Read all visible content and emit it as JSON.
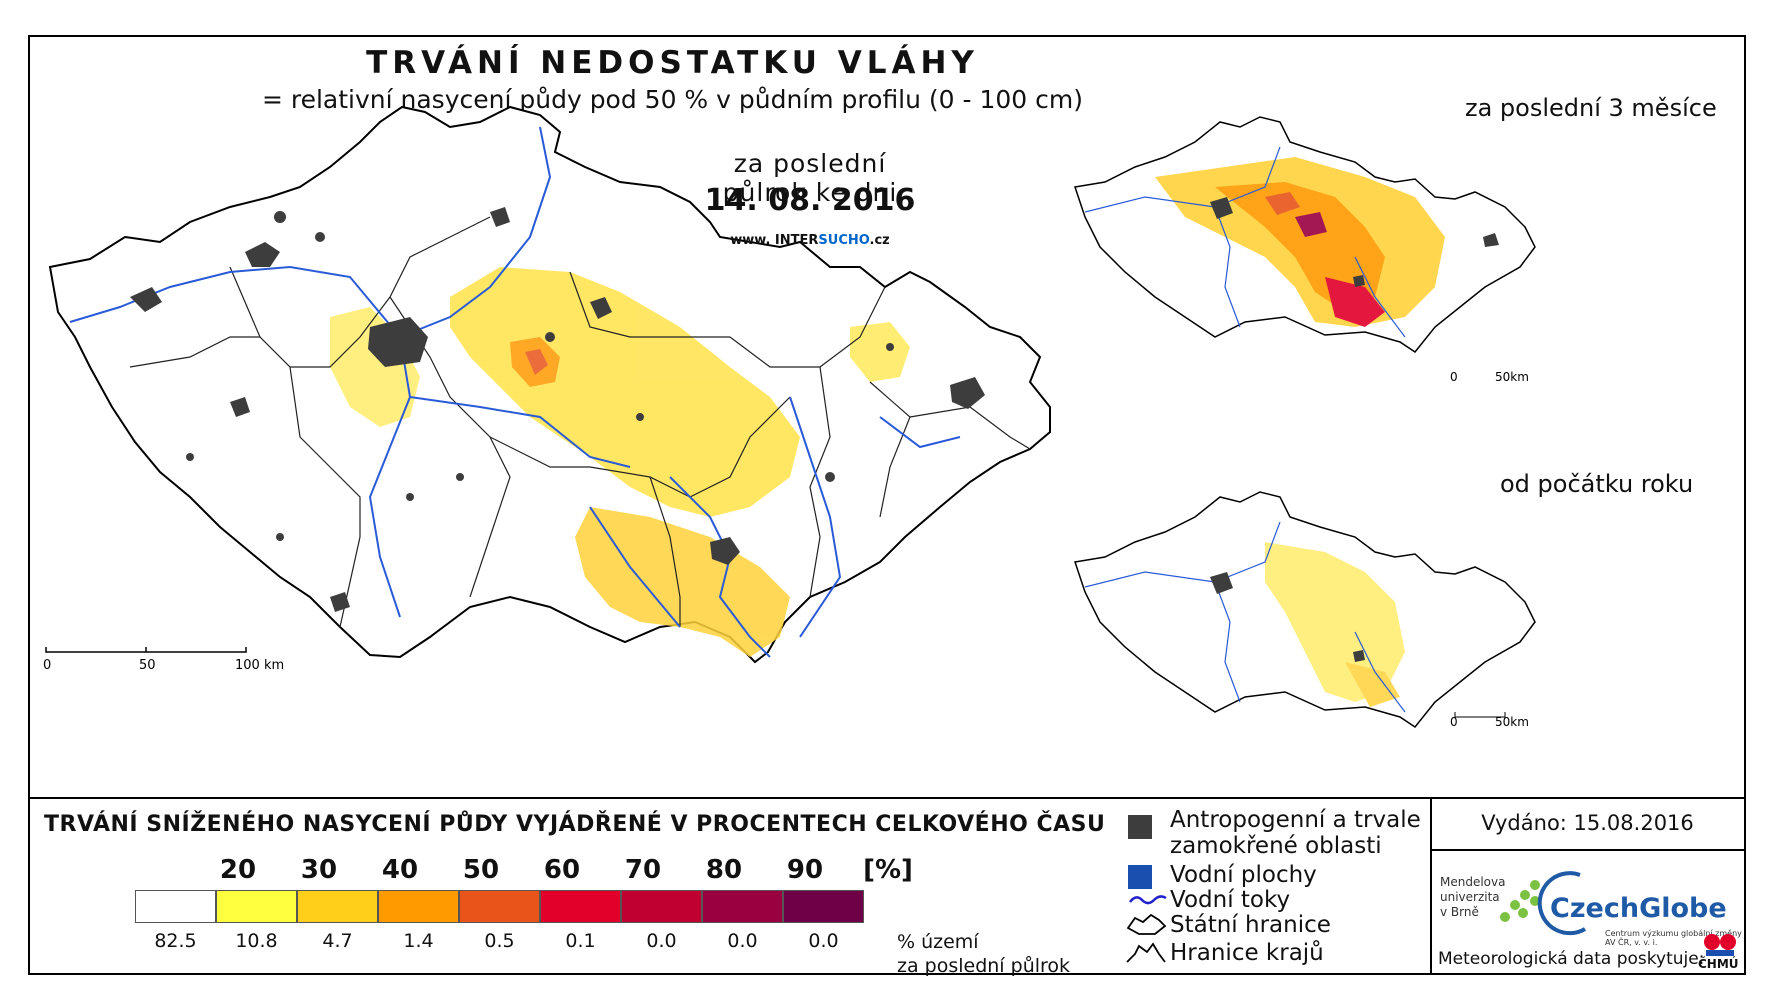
{
  "title": "TRVÁNÍ NEDOSTATKU VLÁHY",
  "subtitle": "= relativní nasycení půdy pod 50 % v půdním profilu (0 - 100 cm)",
  "main_map": {
    "period": "za poslední půlrok ke dni",
    "date": "14. 08. 2016",
    "web": {
      "prefix": "www. INTER",
      "highlight": "SUCHO",
      "suffix": ".cz"
    },
    "scale_labels": [
      "0",
      "50",
      "100 km"
    ]
  },
  "mini_maps": [
    {
      "title": "za poslední 3 měsíce",
      "scale_labels": [
        "0",
        "50km"
      ]
    },
    {
      "title": "od počátku roku",
      "scale_labels": [
        "0",
        "50km"
      ]
    }
  ],
  "legend": {
    "title": "TRVÁNÍ SNÍŽENÉHO NASYCENÍ PŮDY VYJÁDŘENÉ V PROCENTECH CELKOVÉHO ČASU",
    "ticks": [
      "20",
      "30",
      "40",
      "50",
      "60",
      "70",
      "80",
      "90",
      "[%]"
    ],
    "classes": [
      {
        "color": "#ffffff",
        "pct": "82.5"
      },
      {
        "color": "#ffff40",
        "pct": "10.8"
      },
      {
        "color": "#ffcf1a",
        "pct": "4.7"
      },
      {
        "color": "#ff9a00",
        "pct": "1.4"
      },
      {
        "color": "#e8541a",
        "pct": "0.5"
      },
      {
        "color": "#e2002a",
        "pct": "0.1"
      },
      {
        "color": "#bf0030",
        "pct": "0.0"
      },
      {
        "color": "#9a0040",
        "pct": "0.0"
      },
      {
        "color": "#6e0048",
        "pct": "0.0"
      }
    ],
    "pct_unit_line1": "% území",
    "pct_unit_line2": "za poslední půlrok",
    "items": [
      {
        "icon": "anthropogenic-area-icon",
        "label_line1": "Antropogenní a trvale",
        "label_line2": "zamokřené oblasti"
      },
      {
        "icon": "water-body-icon",
        "label": "Vodní plochy"
      },
      {
        "icon": "river-icon",
        "label": "Vodní toky"
      },
      {
        "icon": "state-border-icon",
        "label": "Státní hranice"
      },
      {
        "icon": "region-border-icon",
        "label": "Hranice krajů"
      }
    ]
  },
  "issued": "Vydáno: 15.08.2016",
  "logos": {
    "mendel_lines": [
      "Mendelova",
      "univerzita",
      "v Brně"
    ],
    "czechglobe": "CzechGlobe",
    "czechglobe_sub": "Centrum výzkumu globální změny AV ČR, v. v. i.",
    "chmu": "ČHMÚ"
  },
  "meteo_credit": "Meteorologická data poskytuje:",
  "colors": {
    "river": "#2a5bd7",
    "border": "#000000",
    "urban": "#3d3d3d",
    "water": "#1a4fb0"
  }
}
